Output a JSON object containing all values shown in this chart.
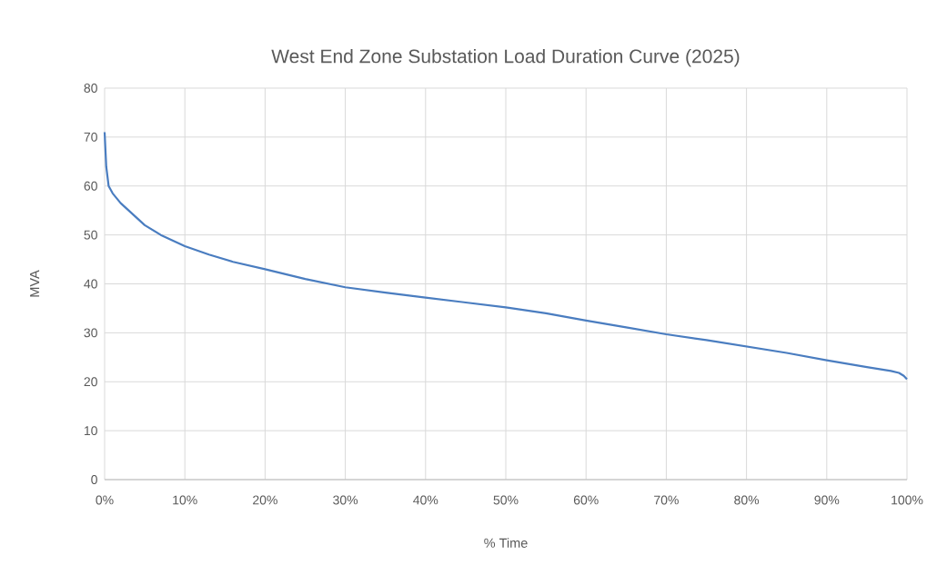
{
  "chart_data": {
    "type": "line",
    "title": "West End Zone Substation Load Duration Curve (2025)",
    "xlabel": "% Time",
    "ylabel": "MVA",
    "x": [
      0,
      0.2,
      0.5,
      1,
      2,
      3,
      4,
      5,
      7,
      10,
      13,
      16,
      20,
      25,
      30,
      35,
      40,
      45,
      50,
      55,
      60,
      65,
      70,
      75,
      80,
      85,
      90,
      95,
      98,
      99,
      99.6,
      100
    ],
    "series": [
      {
        "color": "#4a7dc0",
        "values": [
          71,
          64,
          60,
          58.5,
          56.5,
          55,
          53.5,
          52,
          50,
          47.7,
          46,
          44.5,
          43,
          41,
          39.3,
          38.2,
          37.2,
          36.2,
          35.2,
          34,
          32.5,
          31.1,
          29.7,
          28.5,
          27.2,
          25.9,
          24.4,
          23,
          22.2,
          21.8,
          21.2,
          20.5
        ]
      }
    ],
    "xlim": [
      0,
      100
    ],
    "ylim": [
      0,
      80
    ],
    "xticks": [
      {
        "value": 0,
        "label": "0%"
      },
      {
        "value": 10,
        "label": "10%"
      },
      {
        "value": 20,
        "label": "20%"
      },
      {
        "value": 30,
        "label": "30%"
      },
      {
        "value": 40,
        "label": "40%"
      },
      {
        "value": 50,
        "label": "50%"
      },
      {
        "value": 60,
        "label": "60%"
      },
      {
        "value": 70,
        "label": "70%"
      },
      {
        "value": 80,
        "label": "80%"
      },
      {
        "value": 90,
        "label": "90%"
      },
      {
        "value": 100,
        "label": "100%"
      }
    ],
    "yticks": [
      0,
      10,
      20,
      30,
      40,
      50,
      60,
      70,
      80
    ],
    "grid": true,
    "marker": "none",
    "line_style": "solid"
  }
}
